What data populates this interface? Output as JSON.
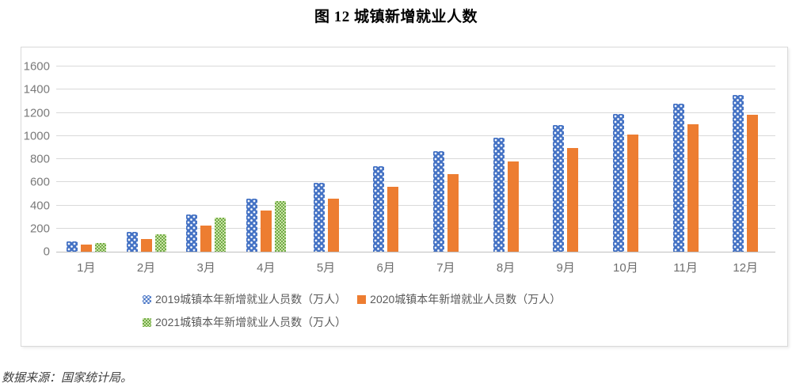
{
  "title": "图 12 城镇新增就业人数",
  "footer": "数据来源：国家统计局。",
  "chart_data": {
    "type": "bar",
    "title": "图 12 城镇新增就业人数",
    "categories": [
      "1月",
      "2月",
      "3月",
      "4月",
      "5月",
      "6月",
      "7月",
      "8月",
      "9月",
      "10月",
      "11月",
      "12月"
    ],
    "series": [
      {
        "name": "2019城镇本年新增就业人员数（万人）",
        "color": "#4472C4",
        "pattern": "white-dots",
        "values": [
          87,
          174,
          324,
          459,
          597,
          737,
          867,
          984,
          1097,
          1193,
          1279,
          1352
        ]
      },
      {
        "name": "2020城镇本年新增就业人员数（万人）",
        "color": "#ED7D31",
        "pattern": "solid",
        "values": [
          65,
          108,
          229,
          354,
          460,
          564,
          671,
          781,
          898,
          1009,
          1099,
          1186
        ]
      },
      {
        "name": "2021城镇本年新增就业人员数（万人）",
        "color": "#70AD47",
        "pattern": "checker",
        "values": [
          78,
          148,
          297,
          437,
          null,
          null,
          null,
          null,
          null,
          null,
          null,
          null
        ]
      }
    ],
    "ylim": [
      0,
      1600
    ],
    "ytick_step": 200,
    "xlabel": "",
    "ylabel": "",
    "grid": true,
    "legend_position": "bottom",
    "gridline_color": "#D9D9D9",
    "axis_line_color": "#BFBFBF"
  }
}
